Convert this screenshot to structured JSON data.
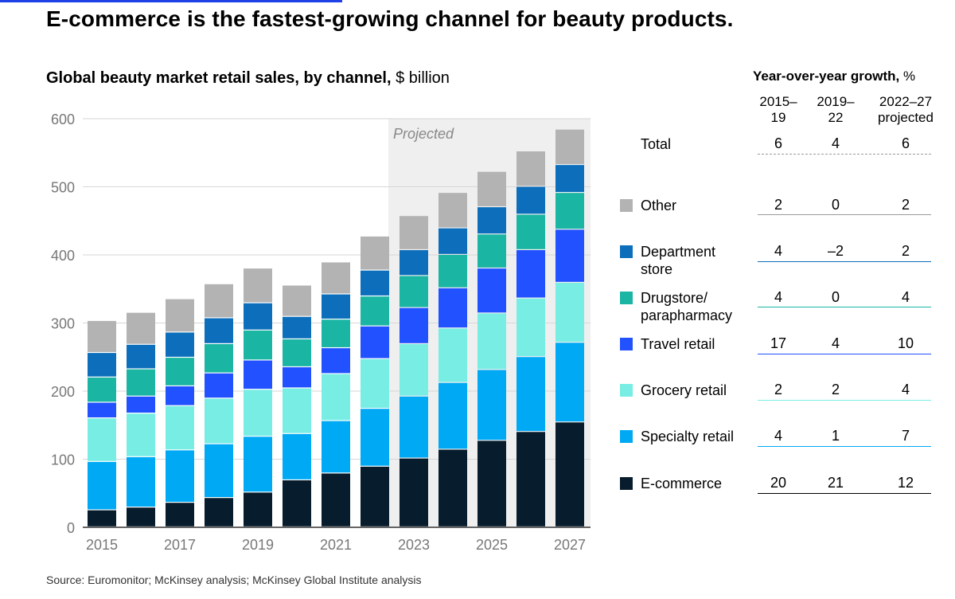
{
  "headline": "E-commerce is the fastest-growing channel for beauty products.",
  "subtitle": {
    "bold": "Global beauty market retail sales, by channel,",
    "unit": " $ billion"
  },
  "source": "Source: Euromonitor; McKinsey analysis; McKinsey Global Institute analysis",
  "chart_data": {
    "type": "bar",
    "stacked": true,
    "title": "Global beauty market retail sales, by channel, $ billion",
    "years": [
      2015,
      2016,
      2017,
      2018,
      2019,
      2020,
      2021,
      2022,
      2023,
      2024,
      2025,
      2026,
      2027
    ],
    "x_tick_labels": [
      "2015",
      "2017",
      "2019",
      "2021",
      "2023",
      "2025",
      "2027"
    ],
    "y_ticks": [
      0,
      100,
      200,
      300,
      400,
      500,
      600
    ],
    "ylim": [
      0,
      600
    ],
    "grid": true,
    "projected_label": "Projected",
    "projected_from": 2023,
    "series": [
      {
        "name": "E-commerce",
        "color": "#071c2c",
        "values": [
          25,
          29,
          36,
          43,
          51,
          69,
          79,
          89,
          101,
          114,
          127,
          140,
          154
        ]
      },
      {
        "name": "Specialty retail",
        "color": "#00a9f4",
        "values": [
          71,
          74,
          77,
          79,
          82,
          68,
          77,
          85,
          91,
          98,
          104,
          110,
          117
        ]
      },
      {
        "name": "Grocery retail",
        "color": "#78ede4",
        "values": [
          64,
          64,
          65,
          67,
          69,
          67,
          69,
          73,
          77,
          80,
          83,
          86,
          88
        ]
      },
      {
        "name": "Travel retail",
        "color": "#2251ff",
        "values": [
          23,
          25,
          29,
          37,
          43,
          31,
          38,
          48,
          53,
          59,
          66,
          71,
          78
        ]
      },
      {
        "name": "Drugstore/ parapharmacy",
        "color": "#1bb5a4",
        "values": [
          37,
          40,
          42,
          43,
          44,
          41,
          42,
          44,
          47,
          49,
          50,
          52,
          54
        ]
      },
      {
        "name": "Department store",
        "color": "#0d6fbb",
        "values": [
          36,
          36,
          37,
          38,
          40,
          33,
          37,
          38,
          38,
          39,
          40,
          41,
          41
        ]
      },
      {
        "name": "Other",
        "color": "#b3b3b3",
        "values": [
          47,
          47,
          49,
          50,
          51,
          46,
          47,
          50,
          50,
          52,
          52,
          52,
          52
        ]
      }
    ]
  },
  "growth_table": {
    "title_bold": "Year-over-year growth,",
    "title_unit": " %",
    "columns": [
      {
        "line1": "2015–",
        "line2": "19"
      },
      {
        "line1": "2019–",
        "line2": "22"
      },
      {
        "line1": "2022–27",
        "line2": "projected"
      }
    ],
    "rows": [
      {
        "label_lines": [
          "Total"
        ],
        "values": [
          "6",
          "4",
          "6"
        ],
        "line_color": "#999999"
      },
      {
        "label_lines": [
          "Other"
        ],
        "values": [
          "2",
          "0",
          "2"
        ],
        "swatch": "#b3b3b3",
        "line_color": "#999999"
      },
      {
        "label_lines": [
          "Department",
          "store"
        ],
        "values": [
          "4",
          "–2",
          "2"
        ],
        "swatch": "#0d6fbb",
        "line_color": "#0d6fbb"
      },
      {
        "label_lines": [
          "Drugstore/",
          "parapharmacy"
        ],
        "values": [
          "4",
          "0",
          "4"
        ],
        "swatch": "#1bb5a4",
        "line_color": "#1bb5a4"
      },
      {
        "label_lines": [
          "Travel retail"
        ],
        "values": [
          "17",
          "4",
          "10"
        ],
        "swatch": "#2251ff",
        "line_color": "#2251ff"
      },
      {
        "label_lines": [
          "Grocery retail"
        ],
        "values": [
          "2",
          "2",
          "4"
        ],
        "swatch": "#78ede4",
        "line_color": "#78ede4"
      },
      {
        "label_lines": [
          "Specialty retail"
        ],
        "values": [
          "4",
          "1",
          "7"
        ],
        "swatch": "#00a9f4",
        "line_color": "#00a9f4"
      },
      {
        "label_lines": [
          "E-commerce"
        ],
        "values": [
          "20",
          "21",
          "12"
        ],
        "swatch": "#071c2c",
        "line_color": "#000000"
      }
    ]
  }
}
